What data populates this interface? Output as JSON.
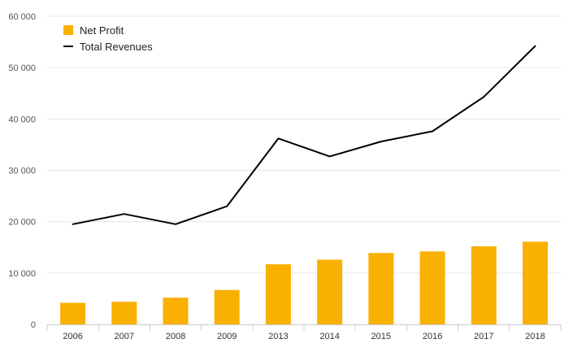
{
  "chart_data": {
    "type": "bar",
    "categories": [
      "2006",
      "2007",
      "2008",
      "2009",
      "2013",
      "2014",
      "2015",
      "2016",
      "2017",
      "2018"
    ],
    "series": [
      {
        "name": "Net Profit",
        "type": "bar",
        "color": "#f9b000",
        "values": [
          4200,
          4400,
          5200,
          6700,
          11700,
          12600,
          13900,
          14200,
          15200,
          16100
        ]
      },
      {
        "name": "Total Revenues",
        "type": "line",
        "color": "#000000",
        "values": [
          19500,
          21500,
          19500,
          23000,
          36200,
          32700,
          35600,
          37600,
          44300,
          54200
        ]
      }
    ],
    "ylim": [
      0,
      60000
    ],
    "yticks": [
      0,
      10000,
      20000,
      30000,
      40000,
      50000,
      60000
    ],
    "ytick_labels": [
      "0",
      "10 000",
      "20 000",
      "30 000",
      "40 000",
      "50 000",
      "60 000"
    ],
    "grid": true,
    "legend_position": "top-left",
    "title": "",
    "xlabel": "",
    "ylabel": ""
  }
}
